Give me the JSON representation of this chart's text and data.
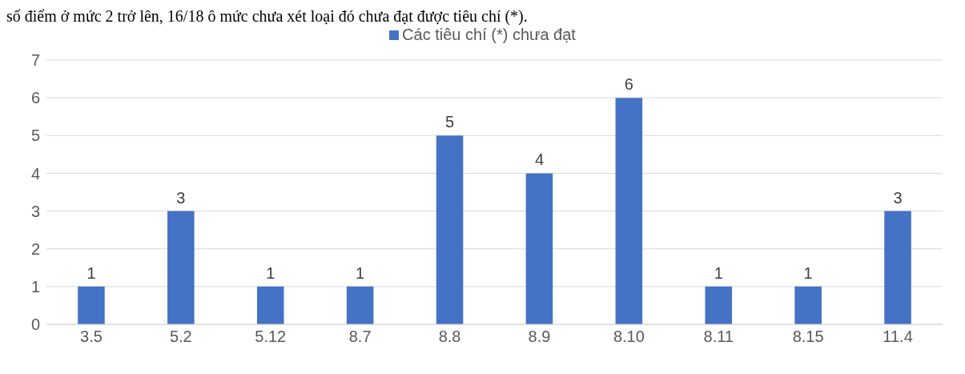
{
  "chart_data": {
    "type": "bar",
    "annotations": [
      "số điểm ở mức 2 trở lên, 16/18 ô mức chưa xét loại đó chưa đạt được tiêu chí (*)."
    ],
    "categories": [
      "3.5",
      "5.2",
      "5.12",
      "8.7",
      "8.8",
      "8.9",
      "8.10",
      "8.11",
      "8.15",
      "11.4"
    ],
    "series": [
      {
        "name": "Các tiêu chí (*) chưa đạt",
        "color": "#4472c4",
        "values": [
          1,
          3,
          1,
          1,
          5,
          4,
          6,
          1,
          1,
          3
        ]
      }
    ],
    "ylim": [
      0,
      7
    ],
    "yticks": [
      0,
      1,
      2,
      3,
      4,
      5,
      6,
      7
    ],
    "grid": "y",
    "legend": "top",
    "data_labels": true
  }
}
